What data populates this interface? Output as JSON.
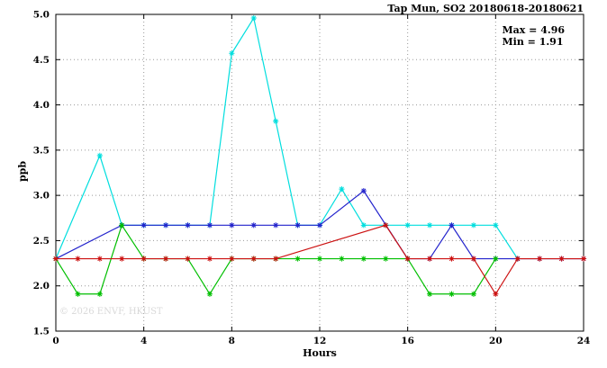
{
  "title": "Tap Mun, SO2 20180618-20180621",
  "annotation": {
    "max_label": "Max = 4.96",
    "min_label": "Min = 1.91"
  },
  "watermark": "© 2026 ENVF, HKUST",
  "chart_data": {
    "type": "line",
    "title": "Tap Mun, SO2 20180618-20180621",
    "xlabel": "Hours",
    "ylabel": "ppb",
    "xlim": [
      0,
      24
    ],
    "ylim": [
      1.5,
      5.0
    ],
    "xticks": [
      0,
      4,
      8,
      12,
      16,
      20,
      24
    ],
    "yticks": [
      1.5,
      2.0,
      2.5,
      3.0,
      3.5,
      4.0,
      4.5,
      5.0
    ],
    "grid": true,
    "legend": "none",
    "marker": "asterisk",
    "max": 4.96,
    "min": 1.91,
    "series": [
      {
        "name": "series-cyan",
        "color": "#00dede",
        "points": [
          [
            0,
            2.3
          ],
          [
            2,
            3.44
          ],
          [
            3,
            2.67
          ],
          [
            4,
            2.67
          ],
          [
            5,
            2.67
          ],
          [
            6,
            2.67
          ],
          [
            7,
            2.67
          ],
          [
            8,
            4.57
          ],
          [
            9,
            4.96
          ],
          [
            10,
            3.82
          ],
          [
            11,
            2.67
          ],
          [
            12,
            2.67
          ],
          [
            13,
            3.07
          ],
          [
            14,
            2.67
          ],
          [
            15,
            2.67
          ],
          [
            16,
            2.67
          ],
          [
            17,
            2.67
          ],
          [
            18,
            2.67
          ],
          [
            19,
            2.67
          ],
          [
            20,
            2.67
          ],
          [
            21,
            2.3
          ]
        ]
      },
      {
        "name": "series-blue",
        "color": "#2323cc",
        "points": [
          [
            0,
            2.3
          ],
          [
            3,
            2.67
          ],
          [
            4,
            2.67
          ],
          [
            5,
            2.67
          ],
          [
            6,
            2.67
          ],
          [
            7,
            2.67
          ],
          [
            8,
            2.67
          ],
          [
            9,
            2.67
          ],
          [
            10,
            2.67
          ],
          [
            11,
            2.67
          ],
          [
            12,
            2.67
          ],
          [
            14,
            3.05
          ],
          [
            16,
            2.3
          ],
          [
            17,
            2.3
          ],
          [
            18,
            2.67
          ],
          [
            19,
            2.3
          ],
          [
            20,
            2.3
          ],
          [
            21,
            2.3
          ],
          [
            22,
            2.3
          ],
          [
            23,
            2.3
          ],
          [
            24,
            2.3
          ]
        ]
      },
      {
        "name": "series-green",
        "color": "#00bf00",
        "points": [
          [
            0,
            2.3
          ],
          [
            1,
            1.91
          ],
          [
            2,
            1.91
          ],
          [
            3,
            2.67
          ],
          [
            4,
            2.3
          ],
          [
            5,
            2.3
          ],
          [
            6,
            2.3
          ],
          [
            7,
            1.91
          ],
          [
            8,
            2.3
          ],
          [
            9,
            2.3
          ],
          [
            10,
            2.3
          ],
          [
            11,
            2.3
          ],
          [
            12,
            2.3
          ],
          [
            13,
            2.3
          ],
          [
            14,
            2.3
          ],
          [
            15,
            2.3
          ],
          [
            16,
            2.3
          ],
          [
            17,
            1.91
          ],
          [
            18,
            1.91
          ],
          [
            19,
            1.91
          ],
          [
            20,
            2.3
          ]
        ]
      },
      {
        "name": "series-red",
        "color": "#cc1111",
        "points": [
          [
            0,
            2.3
          ],
          [
            1,
            2.3
          ],
          [
            2,
            2.3
          ],
          [
            3,
            2.3
          ],
          [
            4,
            2.3
          ],
          [
            5,
            2.3
          ],
          [
            6,
            2.3
          ],
          [
            7,
            2.3
          ],
          [
            8,
            2.3
          ],
          [
            9,
            2.3
          ],
          [
            10,
            2.3
          ],
          [
            15,
            2.67
          ],
          [
            16,
            2.3
          ],
          [
            17,
            2.3
          ],
          [
            18,
            2.3
          ],
          [
            19,
            2.3
          ],
          [
            20,
            1.91
          ],
          [
            21,
            2.3
          ],
          [
            22,
            2.3
          ],
          [
            23,
            2.3
          ],
          [
            24,
            2.3
          ]
        ]
      }
    ]
  }
}
